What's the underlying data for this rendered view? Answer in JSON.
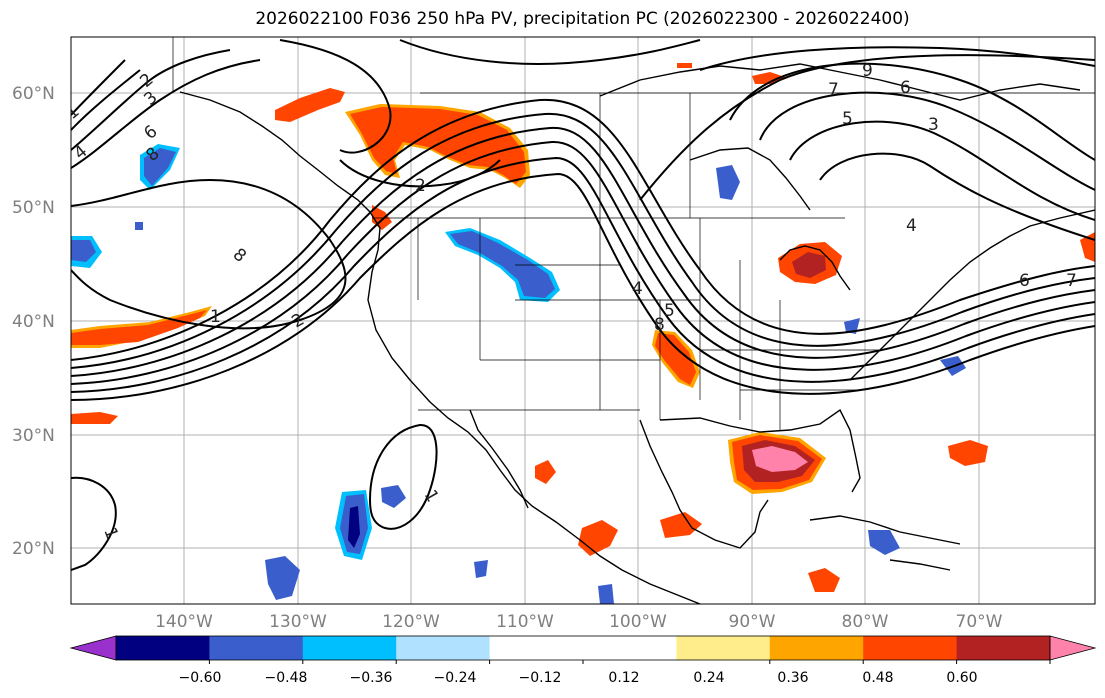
{
  "title": "2026022100 F036 250 hPa PV, precipitation PC (2026022300 - 2026022400)",
  "map": {
    "lat_labels": [
      "60°N",
      "50°N",
      "40°N",
      "30°N",
      "20°N"
    ],
    "lon_labels": [
      "140°W",
      "130°W",
      "120°W",
      "110°W",
      "100°W",
      "90°W",
      "80°W",
      "70°W"
    ]
  },
  "colorbar": {
    "colors": [
      "#9932cc",
      "#000080",
      "#3a5fcd",
      "#00bfff",
      "#b0e2ff",
      "#ffffff",
      "#ffffff",
      "#ffec8b",
      "#ffa500",
      "#ff4500",
      "#b22222",
      "#ff82ab"
    ],
    "tick_labels": [
      "−0.60",
      "−0.48",
      "−0.36",
      "−0.24",
      "−0.12",
      "0.12",
      "0.24",
      "0.36",
      "0.48",
      "0.60"
    ]
  },
  "contour_labels": [
    {
      "text": "2"
    },
    {
      "text": "3"
    },
    {
      "text": "4"
    },
    {
      "text": "6"
    },
    {
      "text": "8"
    },
    {
      "text": "1"
    },
    {
      "text": "8"
    },
    {
      "text": "2"
    },
    {
      "text": "1"
    },
    {
      "text": "2"
    },
    {
      "text": "7"
    },
    {
      "text": "5"
    },
    {
      "text": "6"
    },
    {
      "text": "3"
    },
    {
      "text": "9"
    },
    {
      "text": "4"
    },
    {
      "text": "6"
    },
    {
      "text": "7"
    },
    {
      "text": "4"
    },
    {
      "text": "5"
    },
    {
      "text": "8"
    },
    {
      "text": "1"
    },
    {
      "text": "1"
    }
  ]
}
